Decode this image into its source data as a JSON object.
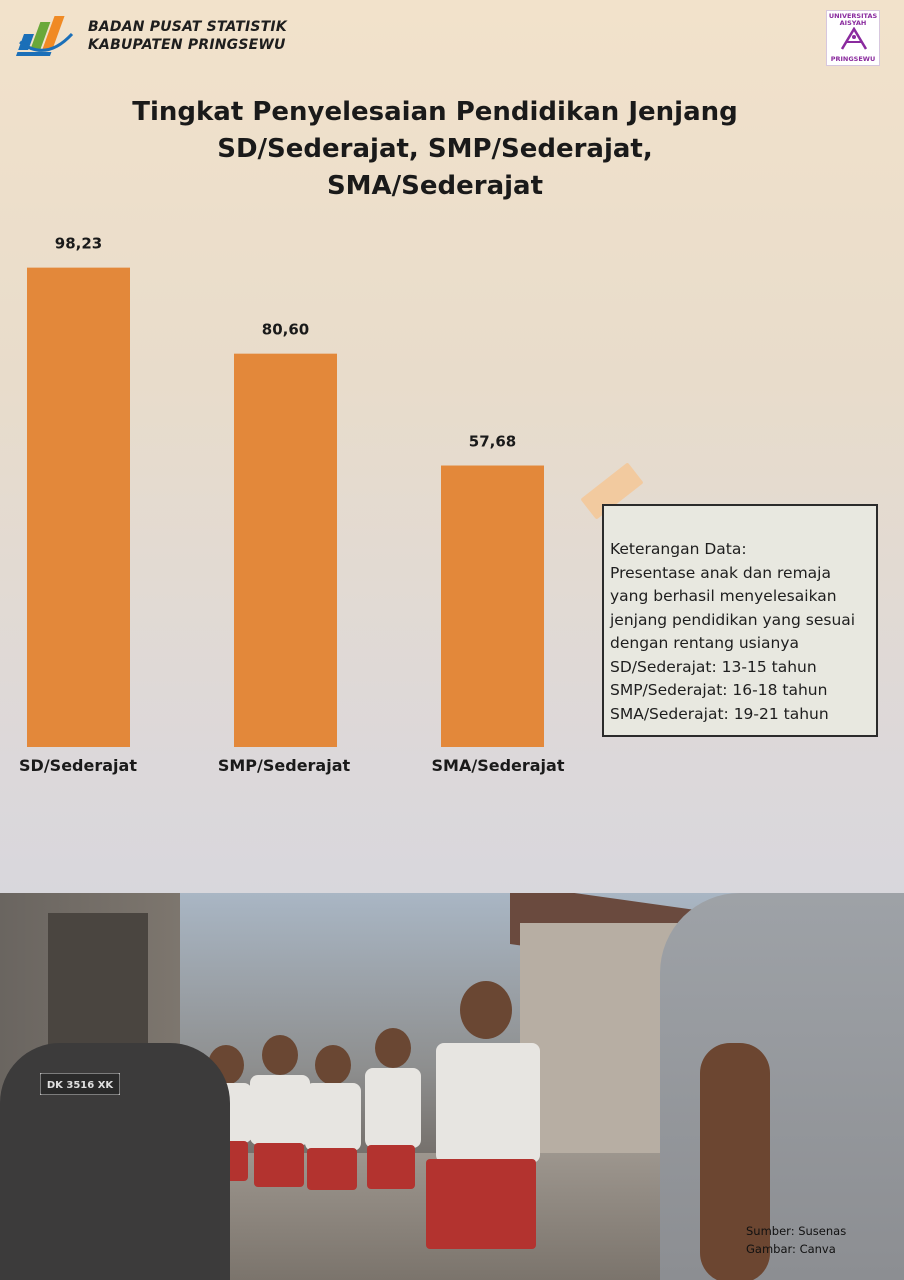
{
  "header": {
    "org_line1": "BADAN PUSAT STATISTIK",
    "org_line2": "KABUPATEN PRINGSEWU",
    "uni_logo": {
      "line1": "UNIVERSITAS",
      "line2": "AISYAH",
      "line3": "PRINGSEWU"
    }
  },
  "title": {
    "line1": "Tingkat Penyelesaian Pendidikan Jenjang",
    "line2": "SD/Sederajat, SMP/Sederajat,",
    "line3": "SMA/Sederajat"
  },
  "chart_data": {
    "type": "bar",
    "categories": [
      "SD/Sederajat",
      "SMP/Sederajat",
      "SMA/Sederajat"
    ],
    "values": [
      98.23,
      80.6,
      57.68
    ],
    "value_labels": [
      "98,23",
      "80,60",
      "57,68"
    ],
    "bar_color": "#e3883a",
    "ylim": [
      0,
      100
    ],
    "grid": false,
    "legend": "none"
  },
  "note": {
    "heading": "Keterangan Data:",
    "lines": [
      "Presentase anak dan remaja",
      "yang berhasil menyelesaikan",
      "jenjang pendidikan yang sesuai",
      "dengan rentang usianya",
      "SD/Sederajat: 13-15 tahun",
      "SMP/Sederajat: 16-18 tahun",
      "SMA/Sederajat: 19-21 tahun"
    ]
  },
  "photo": {
    "plate_text": "DK 3516 XK"
  },
  "credits": {
    "source": "Sumber: Susenas",
    "image": "Gambar: Canva"
  },
  "colors": {
    "bar": "#e3883a",
    "bps_blue": "#1b6fb8",
    "bps_green": "#6aa83a",
    "bps_orange": "#f08a24",
    "uni_purple": "#8a2b9e"
  }
}
